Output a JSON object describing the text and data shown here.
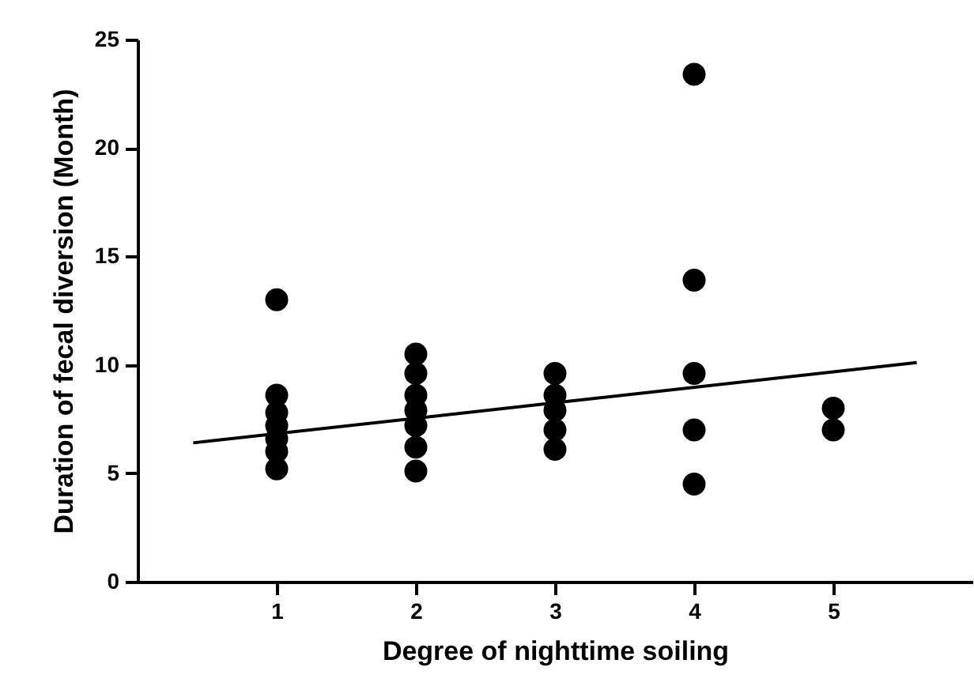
{
  "chart_data": {
    "type": "scatter",
    "xlabel": "Degree of nighttime soiling",
    "ylabel": "Duration of fecal diversion (Month)",
    "xlim": [
      0,
      6
    ],
    "xticks": [
      1,
      2,
      3,
      4,
      5
    ],
    "ylim": [
      0,
      25
    ],
    "yticks": [
      0,
      5,
      10,
      15,
      20,
      25
    ],
    "grid": false,
    "series": [
      {
        "marker": "circle",
        "color": "#000000",
        "x": [
          1,
          1,
          1,
          1,
          1,
          1,
          1,
          2,
          2,
          2,
          2,
          2,
          2,
          2,
          3,
          3,
          3,
          3,
          3,
          4,
          4,
          4,
          4,
          4,
          5,
          5
        ],
        "values": [
          13.0,
          8.6,
          7.8,
          7.2,
          6.6,
          6.0,
          5.2,
          10.5,
          9.6,
          8.6,
          7.9,
          7.2,
          6.2,
          5.1,
          9.6,
          8.6,
          7.9,
          7.0,
          6.1,
          23.4,
          13.9,
          9.6,
          7.0,
          4.5,
          8.0,
          7.0
        ]
      },
      {
        "type": "line",
        "color": "#000000",
        "x": [
          0.4,
          5.6
        ],
        "values": [
          6.4,
          10.1
        ]
      }
    ]
  }
}
